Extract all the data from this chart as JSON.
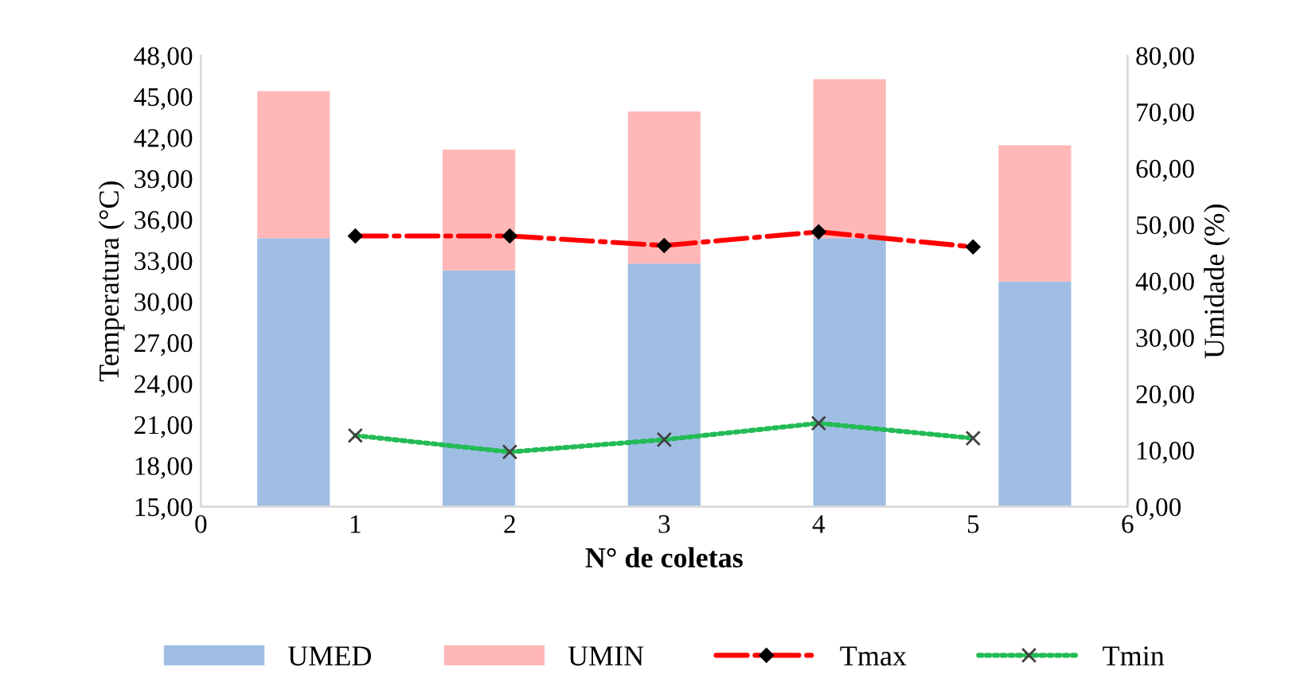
{
  "chart_data": {
    "type": "line",
    "xlabel": "N° de coletas",
    "ylabel": "Temperatura (°C)",
    "y2label": "Umidade (%)",
    "x": [
      1,
      2,
      3,
      4,
      5
    ],
    "series": [
      {
        "name": "UMED",
        "type": "bar",
        "axis": "y2",
        "x": [
          0.6,
          1.8,
          3.0,
          4.2,
          5.4
        ],
        "color": "#a0bee4",
        "values": [
          47.6,
          41.9,
          43.1,
          47.6,
          39.9
        ]
      },
      {
        "name": "UMIN",
        "type": "bar",
        "axis": "y2",
        "x": [
          0.6,
          1.8,
          3.0,
          4.2,
          5.4
        ],
        "color": "#ffb7b7",
        "values": [
          26.1,
          21.4,
          27.0,
          28.2,
          24.2
        ]
      },
      {
        "name": "Tmax",
        "color": "#ff0000",
        "marker": "diamond",
        "line_style": "dashdot",
        "values": [
          34.8,
          34.8,
          34.1,
          35.1,
          34.0
        ]
      },
      {
        "name": "Tmin",
        "color": "#22bb55",
        "marker": "cross",
        "line_style": "dotted",
        "values": [
          20.2,
          19.0,
          19.9,
          21.1,
          20.0
        ]
      }
    ],
    "stacked": true,
    "grid": false,
    "legend": "bottom",
    "xlim": [
      0,
      6
    ],
    "xticks": [
      0,
      1,
      2,
      3,
      4,
      5,
      6
    ],
    "ylim": [
      15,
      48
    ],
    "yticks": [
      {
        "value": 15,
        "label": "15,00"
      },
      {
        "value": 18,
        "label": "18,00"
      },
      {
        "value": 21,
        "label": "21,00"
      },
      {
        "value": 24,
        "label": "24,00"
      },
      {
        "value": 27,
        "label": "27,00"
      },
      {
        "value": 30,
        "label": "30,00"
      },
      {
        "value": 33,
        "label": "33,00"
      },
      {
        "value": 36,
        "label": "36,00"
      },
      {
        "value": 39,
        "label": "39,00"
      },
      {
        "value": 42,
        "label": "42,00"
      },
      {
        "value": 45,
        "label": "45,00"
      },
      {
        "value": 48,
        "label": "48,00"
      }
    ],
    "y2lim": [
      0,
      80
    ],
    "y2ticks": [
      {
        "value": 0,
        "label": "0,00"
      },
      {
        "value": 10,
        "label": "10,00"
      },
      {
        "value": 20,
        "label": "20,00"
      },
      {
        "value": 30,
        "label": "30,00"
      },
      {
        "value": 40,
        "label": "40,00"
      },
      {
        "value": 50,
        "label": "50,00"
      },
      {
        "value": 60,
        "label": "60,00"
      },
      {
        "value": 70,
        "label": "70,00"
      },
      {
        "value": 80,
        "label": "80,00"
      }
    ]
  }
}
